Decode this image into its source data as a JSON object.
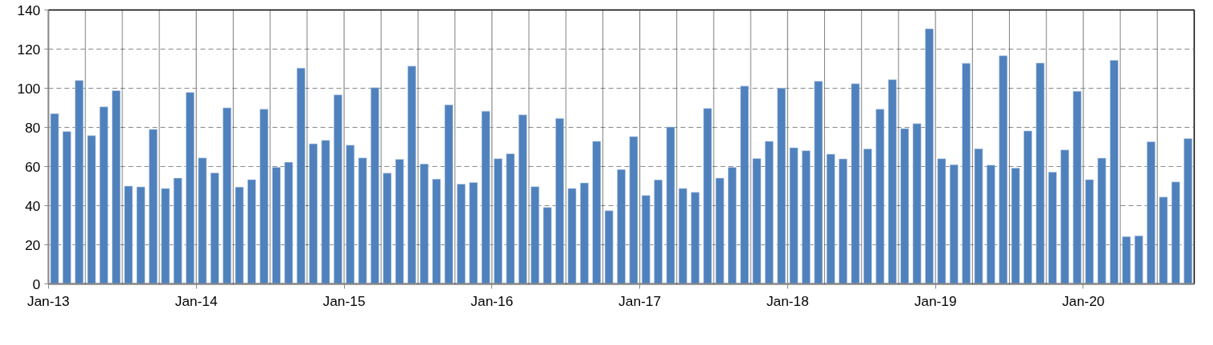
{
  "chart_data": {
    "type": "bar",
    "categories": [
      "Jan-13",
      null,
      null,
      null,
      null,
      null,
      null,
      null,
      null,
      null,
      null,
      null,
      "Jan-14",
      null,
      null,
      null,
      null,
      null,
      null,
      null,
      null,
      null,
      null,
      null,
      "Jan-15",
      null,
      null,
      null,
      null,
      null,
      null,
      null,
      null,
      null,
      null,
      null,
      "Jan-16",
      null,
      null,
      null,
      null,
      null,
      null,
      null,
      null,
      null,
      null,
      null,
      "Jan-17",
      null,
      null,
      null,
      null,
      null,
      null,
      null,
      null,
      null,
      null,
      null,
      "Jan-18",
      null,
      null,
      null,
      null,
      null,
      null,
      null,
      null,
      null,
      null,
      null,
      "Jan-19",
      null,
      null,
      null,
      null,
      null,
      null,
      null,
      null,
      null,
      null,
      null,
      "Jan-20",
      null,
      null,
      null,
      null,
      null,
      null,
      null,
      null
    ],
    "values": [
      87.0,
      77.9,
      104.0,
      75.8,
      90.5,
      98.8,
      50.0,
      49.6,
      79.0,
      48.8,
      54.1,
      97.9,
      64.4,
      56.7,
      90.0,
      49.5,
      53.3,
      89.3,
      59.6,
      62.2,
      110.3,
      71.6,
      73.4,
      96.6,
      70.9,
      64.4,
      100.3,
      56.6,
      63.7,
      111.3,
      61.3,
      53.6,
      91.5,
      51.0,
      51.8,
      88.3,
      64.0,
      66.5,
      86.4,
      49.7,
      39.1,
      84.6,
      48.8,
      51.6,
      72.9,
      37.4,
      58.5,
      75.3,
      45.2,
      53.2,
      80.2,
      48.8,
      46.8,
      89.7,
      54.1,
      59.6,
      101.1,
      64.1,
      72.9,
      100.1,
      69.6,
      68.1,
      103.6,
      66.3,
      63.9,
      102.3,
      69.0,
      89.3,
      104.4,
      79.4,
      81.9,
      130.4,
      64.0,
      60.9,
      112.8,
      69.1,
      60.7,
      116.6,
      59.2,
      78.2,
      112.9,
      57.1,
      68.5,
      98.5,
      53.3,
      64.3,
      114.3,
      24.2,
      24.6,
      72.7,
      44.4,
      52.1,
      74.3
    ],
    "color": "#4f81bd",
    "ylim": [
      0,
      140
    ],
    "yticks": [
      0,
      20,
      40,
      60,
      80,
      100,
      120,
      140
    ],
    "grid": true
  }
}
